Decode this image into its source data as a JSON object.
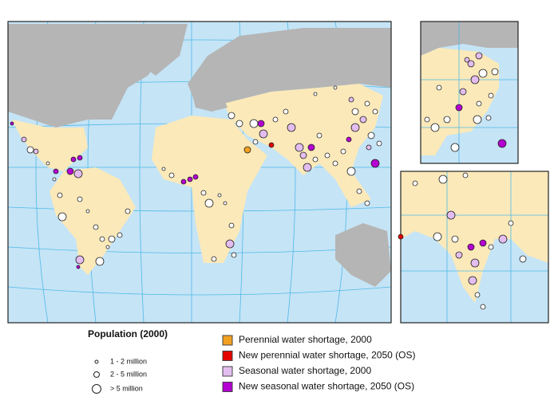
{
  "legend": {
    "population": {
      "title": "Population (2000)",
      "items": [
        "1 - 2 million",
        "2 - 5 million",
        "> 5 million"
      ]
    },
    "shortage": {
      "items": [
        {
          "label": "Perennial water shortage, 2000",
          "color": "#f2a020"
        },
        {
          "label": "New perennial water shortage, 2050 (OS)",
          "color": "#e50000"
        },
        {
          "label": "Seasonal water shortage, 2000",
          "color": "#e3bdf0"
        },
        {
          "label": "New seasonal water shortage, 2050 (OS)",
          "color": "#b400d2"
        }
      ]
    }
  }
}
